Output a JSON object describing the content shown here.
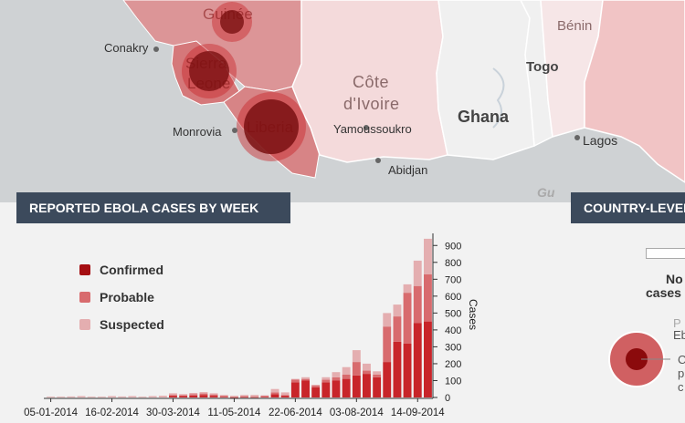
{
  "map": {
    "cities": [
      "Conakry",
      "Monrovia",
      "Yamoussoukro",
      "Abidjan",
      "Lagos"
    ],
    "countries": [
      "Guinée",
      "Sierra",
      "Leone",
      "Liberia",
      "Côte",
      "d'Ivoire",
      "Ghana",
      "Togo",
      "Bénin"
    ],
    "watermark": "Gu"
  },
  "weekly_header": "REPORTED EBOLA CASES BY WEEK",
  "country_header": "COUNTRY-LEVEL",
  "legend": {
    "confirmed": "Confirmed",
    "probable": "Probable",
    "suspected": "Suspected"
  },
  "colors": {
    "confirmed": "#c8252a",
    "probable": "#d86b6e",
    "suspected": "#e4aeb0",
    "header_bg": "#3c4a5c"
  },
  "side": {
    "no_label": "No",
    "cases_label": "cases",
    "p_label": "P",
    "eb_label": "Eb",
    "c_label": "C",
    "p2_label": "p",
    "c2_label": "c"
  },
  "chart_data": {
    "type": "bar",
    "stacked": true,
    "ylabel": "Cases",
    "ylim": [
      0,
      950
    ],
    "yticks": [
      0,
      100,
      200,
      300,
      400,
      500,
      600,
      700,
      800,
      900
    ],
    "x_tick_labels": [
      "05-01-2014",
      "16-02-2014",
      "30-03-2014",
      "11-05-2014",
      "22-06-2014",
      "03-08-2014",
      "14-09-2014"
    ],
    "x_tick_week_index": [
      0,
      6,
      12,
      18,
      24,
      30,
      36
    ],
    "series": [
      {
        "name": "Confirmed",
        "values": [
          0,
          0,
          0,
          0,
          0,
          0,
          0,
          0,
          0,
          0,
          0,
          0,
          10,
          8,
          12,
          14,
          10,
          5,
          2,
          4,
          3,
          5,
          20,
          10,
          90,
          100,
          60,
          90,
          100,
          110,
          130,
          140,
          120,
          210,
          330,
          320,
          440,
          450
        ]
      },
      {
        "name": "Probable",
        "values": [
          0,
          0,
          0,
          0,
          0,
          0,
          0,
          0,
          0,
          0,
          0,
          0,
          5,
          5,
          8,
          10,
          8,
          3,
          2,
          3,
          2,
          3,
          10,
          5,
          15,
          10,
          10,
          15,
          20,
          25,
          80,
          20,
          15,
          210,
          150,
          300,
          220,
          280
        ]
      },
      {
        "name": "Suspected",
        "values": [
          5,
          5,
          6,
          8,
          5,
          5,
          8,
          6,
          8,
          5,
          8,
          10,
          10,
          7,
          7,
          8,
          7,
          7,
          6,
          8,
          10,
          5,
          20,
          15,
          5,
          10,
          5,
          15,
          30,
          45,
          70,
          40,
          20,
          80,
          70,
          50,
          150,
          210
        ]
      }
    ]
  }
}
